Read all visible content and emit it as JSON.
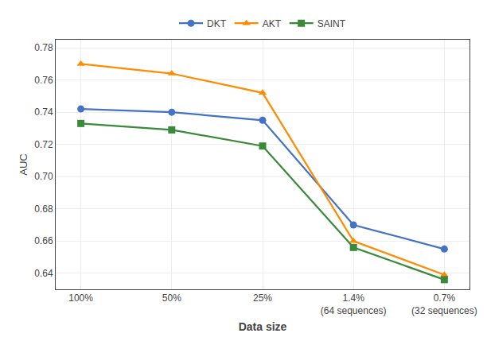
{
  "chart_data": {
    "type": "line",
    "categories": [
      "100%",
      "50%",
      "25%",
      "1.4%\n(64 sequences)",
      "0.7%\n(32 sequences)"
    ],
    "series": [
      {
        "name": "DKT",
        "color": "#4472C4",
        "marker": "circle",
        "values": [
          0.742,
          0.74,
          0.735,
          0.67,
          0.655
        ]
      },
      {
        "name": "AKT",
        "color": "#FF8C00",
        "marker": "triangle-up",
        "values": [
          0.77,
          0.764,
          0.752,
          0.66,
          0.639
        ]
      },
      {
        "name": "SAINT",
        "color": "#3A8A3A",
        "marker": "square",
        "values": [
          0.733,
          0.729,
          0.719,
          0.656,
          0.636
        ]
      }
    ],
    "x_label": "Data size",
    "y_label": "AUC",
    "ylim": [
      0.63,
      0.785
    ],
    "yticks": [
      0.64,
      0.66,
      0.68,
      {
        "value": 0.7,
        "label": "0.70"
      },
      0.72,
      0.74,
      0.76,
      0.78
    ],
    "grid": true,
    "legend": "top"
  }
}
